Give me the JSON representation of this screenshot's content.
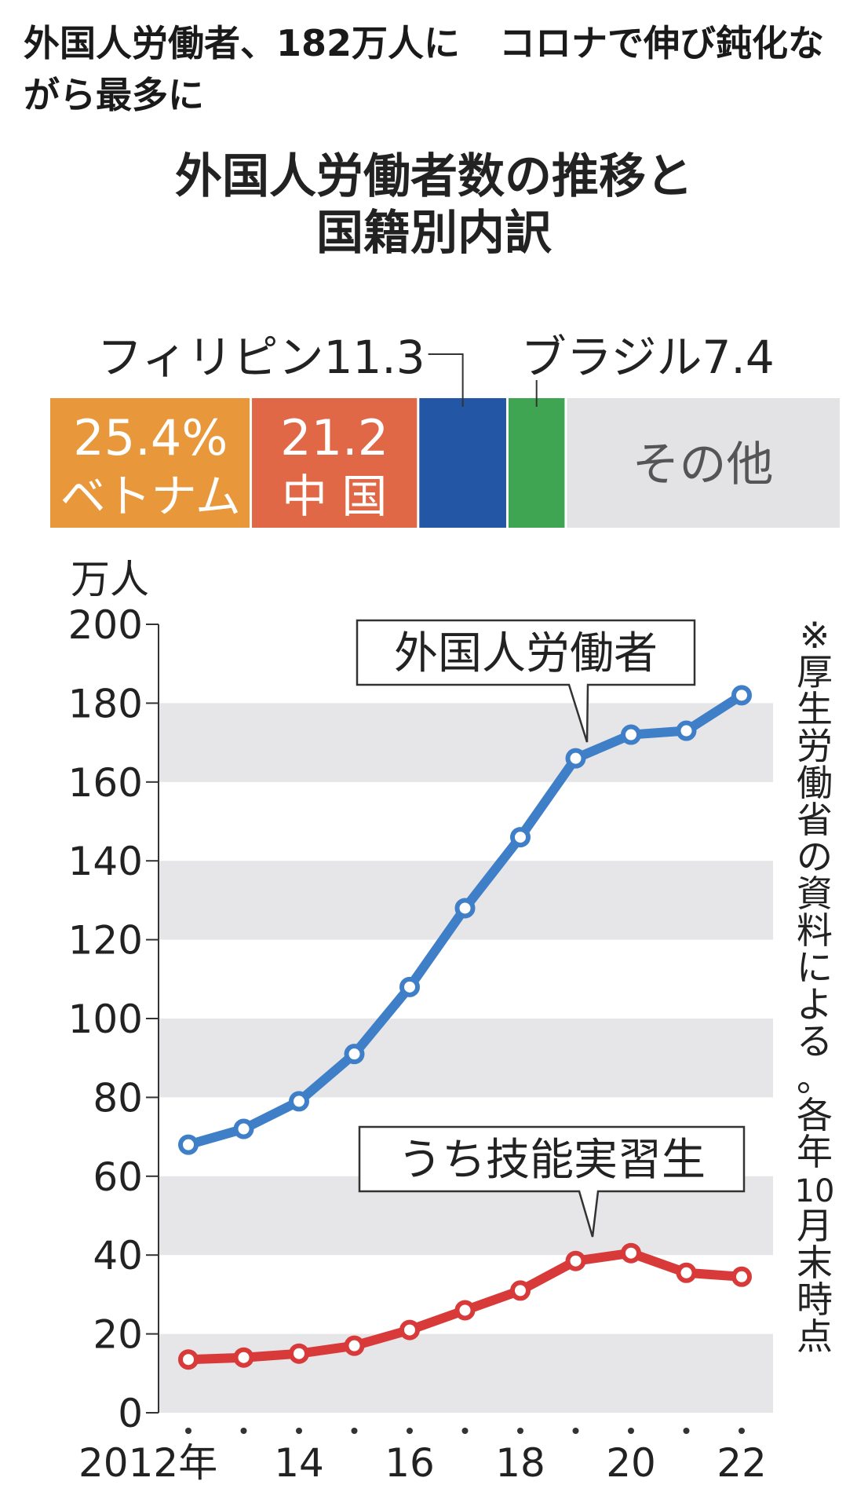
{
  "headline": {
    "part1": "外国人労働者、182万人に",
    "part2": "コロナで伸び鈍化ながら最多に"
  },
  "chart_data": {
    "type": "line",
    "title": "外国人労働者数の推移と国籍別内訳",
    "title_lines": [
      "外国人労働者数の推移と",
      "国籍別内訳"
    ],
    "breakdown": {
      "type": "stacked-bar",
      "unit": "%",
      "segments": [
        {
          "name": "ベトナム",
          "value": 25.4,
          "label_value": "25.4%",
          "label_name": "ベトナム",
          "color": "#e8983a"
        },
        {
          "name": "中国",
          "value": 21.2,
          "label_value": "21.2",
          "label_name": "中 国",
          "color": "#e06846"
        },
        {
          "name": "フィリピン",
          "value": 11.3,
          "label_value": "フィリピン11.3",
          "color": "#2456a6"
        },
        {
          "name": "ブラジル",
          "value": 7.4,
          "label_value": "ブラジル7.4",
          "color": "#3fa553"
        },
        {
          "name": "その他",
          "value": 34.7,
          "label_value": "その他",
          "color": "#e3e3e6"
        }
      ]
    },
    "ylabel": "万人",
    "ylim": [
      0,
      200
    ],
    "yticks": [
      0,
      20,
      40,
      60,
      80,
      100,
      120,
      140,
      160,
      180,
      200
    ],
    "x": [
      2012,
      2013,
      2014,
      2015,
      2016,
      2017,
      2018,
      2019,
      2020,
      2021,
      2022
    ],
    "xtick_labels": [
      {
        "x": 2012,
        "label": "2012年"
      },
      {
        "x": 2014,
        "label": "14"
      },
      {
        "x": 2016,
        "label": "16"
      },
      {
        "x": 2018,
        "label": "18"
      },
      {
        "x": 2020,
        "label": "20"
      },
      {
        "x": 2022,
        "label": "22"
      }
    ],
    "series": [
      {
        "name": "外国人労働者",
        "color": "#3f7fc8",
        "values": [
          68,
          72,
          79,
          91,
          108,
          128,
          146,
          166,
          172,
          173,
          182
        ]
      },
      {
        "name": "うち技能実習生",
        "color": "#d83a3a",
        "values": [
          13.5,
          14,
          15,
          17,
          21,
          26,
          31,
          38.5,
          40.5,
          35.5,
          34.5
        ]
      }
    ],
    "grid": "alternating-bands",
    "source_note": "※厚生労働省の資料による。各年10月末時点"
  }
}
